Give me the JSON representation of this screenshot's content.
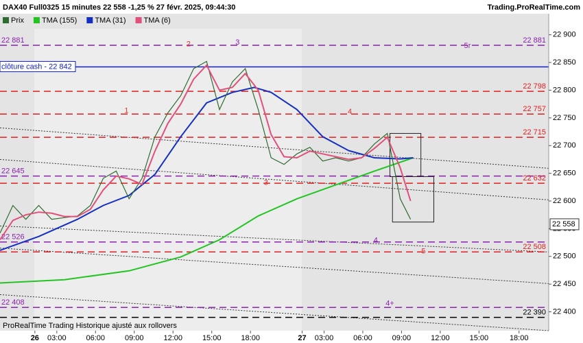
{
  "chart_data": {
    "type": "line",
    "title": "DAX40 Full0325 15 minutes 22 558 -1,25 % 27 févr. 2025, 09:44:30",
    "source": "Trading.ProRealTime.com",
    "footer": "ProRealTime Trading  Historique ajusté aux rollovers",
    "xlim": [
      0,
      42.5
    ],
    "ylim": [
      22366,
      22938
    ],
    "xticks": [
      {
        "value": 2.7,
        "label": "26"
      },
      {
        "value": 4.4,
        "label": "03:00"
      },
      {
        "value": 7.4,
        "label": "06:00"
      },
      {
        "value": 10.4,
        "label": "09:00"
      },
      {
        "value": 13.4,
        "label": "12:00"
      },
      {
        "value": 16.4,
        "label": "15:00"
      },
      {
        "value": 19.4,
        "label": "18:00"
      },
      {
        "value": 23.4,
        "label": "27"
      },
      {
        "value": 25.1,
        "label": "03:00"
      },
      {
        "value": 28.1,
        "label": "06:00"
      },
      {
        "value": 31.1,
        "label": "09:00"
      },
      {
        "value": 34.1,
        "label": "12:00"
      },
      {
        "value": 37.1,
        "label": "15:00"
      },
      {
        "value": 40.2,
        "label": "18:00"
      }
    ],
    "yticks": [
      {
        "value": 22400,
        "label": "22 400"
      },
      {
        "value": 22450,
        "label": "22 450"
      },
      {
        "value": 22500,
        "label": "22 500"
      },
      {
        "value": 22550,
        "label": "22 550"
      },
      {
        "value": 22600,
        "label": "22 600"
      },
      {
        "value": 22650,
        "label": "22 650"
      },
      {
        "value": 22700,
        "label": "22 700"
      },
      {
        "value": 22750,
        "label": "22 750"
      },
      {
        "value": 22800,
        "label": "22 800"
      },
      {
        "value": 22850,
        "label": "22 850"
      },
      {
        "value": 22900,
        "label": "22 900"
      }
    ],
    "series": [
      {
        "name": "Prix",
        "color": "#2e6b2e",
        "x": [
          0,
          1,
          2,
          3,
          4,
          5,
          6,
          7,
          8,
          9,
          10,
          11,
          12,
          13,
          14,
          15,
          16,
          17,
          18,
          19,
          20,
          21,
          22,
          23,
          24,
          25,
          26,
          27,
          28,
          29,
          30,
          31,
          31.8
        ],
        "values": [
          22542,
          22592,
          22567,
          22592,
          22567,
          22570,
          22573,
          22592,
          22641,
          22654,
          22604,
          22641,
          22716,
          22759,
          22790,
          22839,
          22852,
          22765,
          22815,
          22839,
          22765,
          22678,
          22666,
          22685,
          22697,
          22672,
          22678,
          22672,
          22678,
          22703,
          22722,
          22604,
          22567
        ]
      },
      {
        "name": "TMA (155)",
        "color": "#22c422",
        "x": [
          0,
          5,
          10,
          14,
          17,
          20,
          23,
          26,
          29,
          32
        ],
        "values": [
          22452,
          22458,
          22474,
          22499,
          22530,
          22573,
          22604,
          22629,
          22654,
          22678
        ]
      },
      {
        "name": "TMA (31)",
        "color": "#1530c0",
        "x": [
          0,
          3,
          6,
          8,
          10,
          12,
          14,
          16,
          18,
          19.7,
          21,
          23,
          25,
          27,
          29,
          31,
          32
        ],
        "values": [
          22511,
          22536,
          22567,
          22592,
          22610,
          22648,
          22716,
          22777,
          22796,
          22805,
          22796,
          22765,
          22716,
          22691,
          22678,
          22676,
          22678
        ]
      },
      {
        "name": "TMA (6)",
        "color": "#e0507a",
        "x": [
          0,
          1,
          2,
          3,
          4,
          5,
          6,
          7,
          8,
          9,
          10,
          11,
          12,
          13,
          14,
          15,
          16,
          17,
          18,
          19,
          20,
          21,
          22,
          23,
          24,
          25,
          26,
          27,
          28,
          29,
          30,
          31,
          31.8
        ],
        "values": [
          22530,
          22565,
          22575,
          22580,
          22578,
          22572,
          22572,
          22585,
          22620,
          22645,
          22640,
          22630,
          22690,
          22740,
          22775,
          22820,
          22845,
          22800,
          22805,
          22830,
          22800,
          22720,
          22680,
          22678,
          22690,
          22685,
          22680,
          22675,
          22678,
          22695,
          22715,
          22660,
          22600
        ]
      }
    ],
    "levels": [
      {
        "value": 22881,
        "label": "22 881",
        "left_label": "22 881",
        "color": "#8a1fb0"
      },
      {
        "value": 22842,
        "left_label": "clôture cash -  22 842",
        "color": "#1020d0",
        "solid": true
      },
      {
        "value": 22798,
        "label": "22 798",
        "color": "#e02020"
      },
      {
        "value": 22757,
        "label": "22 757",
        "color": "#e02020"
      },
      {
        "value": 22715,
        "label": "22 715",
        "color": "#e02020"
      },
      {
        "value": 22645,
        "left_label": "22 645",
        "color": "#8a1fb0"
      },
      {
        "value": 22632,
        "label": "22 632",
        "color": "#e02020"
      },
      {
        "value": 22526,
        "left_label": "22 526",
        "color": "#8a1fb0"
      },
      {
        "value": 22508,
        "label": "22 508",
        "color": "#e02020"
      },
      {
        "value": 22408,
        "left_label": "22 408",
        "color": "#8a1fb0"
      },
      {
        "value": 22390,
        "label": "22 390",
        "color": "#000000"
      }
    ],
    "trendlines": [
      {
        "x": [
          0,
          42.5
        ],
        "y": [
          22732,
          22659
        ]
      },
      {
        "x": [
          0,
          42.5
        ],
        "y": [
          22675,
          22602
        ]
      },
      {
        "x": [
          0,
          42.5
        ],
        "y": [
          22555,
          22508
        ]
      },
      {
        "x": [
          0,
          42.5
        ],
        "y": [
          22515,
          22451
        ]
      },
      {
        "x": [
          0,
          42.5
        ],
        "y": [
          22431,
          22366
        ]
      }
    ],
    "boxes": [
      {
        "x": [
          30.2,
          32.6
        ],
        "y": [
          22644,
          22722
        ]
      },
      {
        "x": [
          30.4,
          33.6
        ],
        "y": [
          22562,
          22644
        ]
      }
    ],
    "annotations": [
      {
        "text": "1",
        "x": 9.8,
        "y": 22763,
        "color": "#e03030"
      },
      {
        "text": "2",
        "x": 14.6,
        "y": 22883,
        "color": "#e03030"
      },
      {
        "text": "3",
        "x": 18.4,
        "y": 22886,
        "color": "#8a1fb0"
      },
      {
        "text": "4",
        "x": 27.1,
        "y": 22761,
        "color": "#e03030"
      },
      {
        "text": "3",
        "x": 20.6,
        "y": 22633,
        "color": "#e03030"
      },
      {
        "text": "5r",
        "x": 36.2,
        "y": 22880,
        "color": "#8a1fb0"
      },
      {
        "text": "4",
        "x": 29.1,
        "y": 22529,
        "color": "#8a1fb0"
      },
      {
        "text": "5",
        "x": 32.8,
        "y": 22509,
        "color": "#e03030"
      },
      {
        "text": "4+",
        "x": 30.2,
        "y": 22415,
        "color": "#8a1fb0"
      }
    ],
    "last_price": {
      "value": 22558,
      "label": "22 558"
    }
  }
}
